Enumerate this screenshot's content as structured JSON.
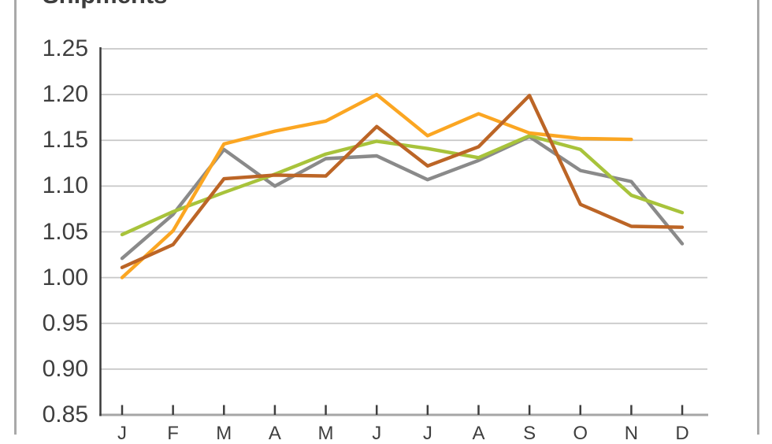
{
  "title": "Shipments",
  "y_axis": {
    "labels": [
      "1.25",
      "1.20",
      "1.15",
      "1.10",
      "1.05",
      "1.00",
      "0.95",
      "0.90",
      "0.85"
    ]
  },
  "x_axis": {
    "labels": [
      "J",
      "F",
      "M",
      "A",
      "M",
      "J",
      "J",
      "A",
      "S",
      "O",
      "N",
      "D"
    ]
  },
  "colors": {
    "orange_series": "#FBA622",
    "brown_series": "#BC6526",
    "gray_series": "#8A8A8A",
    "green_series": "#A8C33B",
    "gridline": "#C7C7C7",
    "x_axis_line": "#A6A6A6",
    "y_axis_line": "#3A3A3A",
    "tick": "#3F3F3F",
    "label_text": "#3F3F3F",
    "frame_border": "#A9A9A9"
  },
  "chart_data": {
    "type": "line",
    "title": "Shipments",
    "categories": [
      "J",
      "F",
      "M",
      "A",
      "M",
      "J",
      "J",
      "A",
      "S",
      "O",
      "N",
      "D"
    ],
    "categories_meaning": "months Jan-Dec, labels clipped at bottom edge of screenshot",
    "ylim": [
      0.85,
      1.25
    ],
    "y_tick_step": 0.05,
    "grid": true,
    "legend": "none",
    "series": [
      {
        "name": "gray-series",
        "color": "#8A8A8A",
        "values": [
          1.021,
          1.069,
          1.14,
          1.1,
          1.13,
          1.133,
          1.107,
          1.128,
          1.154,
          1.117,
          1.105,
          1.037
        ]
      },
      {
        "name": "green-series",
        "color": "#A8C33B",
        "values": [
          1.047,
          1.072,
          1.093,
          1.113,
          1.135,
          1.149,
          1.141,
          1.131,
          1.155,
          1.14,
          1.09,
          1.071
        ]
      },
      {
        "name": "orange-series",
        "color": "#FBA622",
        "values": [
          1.0,
          1.051,
          1.146,
          1.16,
          1.171,
          1.2,
          1.155,
          1.179,
          1.158,
          1.152,
          1.151,
          null
        ]
      },
      {
        "name": "brown-series",
        "color": "#BC6526",
        "values": [
          1.011,
          1.036,
          1.108,
          1.112,
          1.111,
          1.165,
          1.122,
          1.143,
          1.199,
          1.08,
          1.056,
          1.055
        ]
      }
    ]
  }
}
